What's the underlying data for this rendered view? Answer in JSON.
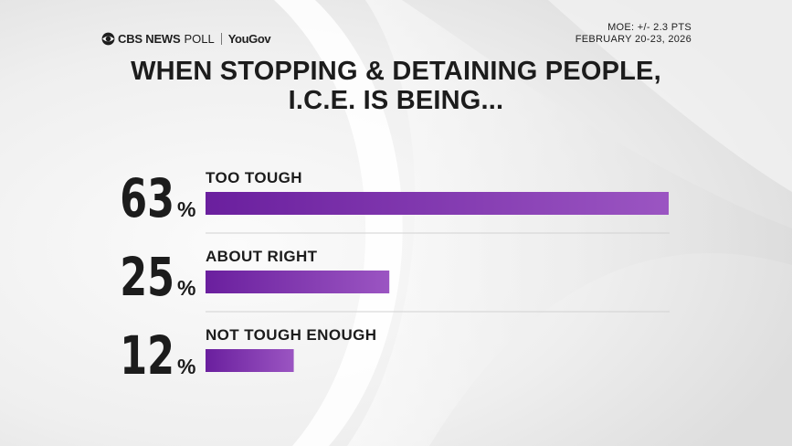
{
  "header": {
    "brand_cbs": "CBS NEWS",
    "brand_poll": "POLL",
    "brand_partner": "YouGov",
    "moe": "MOE: +/- 2.3 PTS",
    "dates": "FEBRUARY 20-23, 2026"
  },
  "colors": {
    "bar_start": "#6a1f9e",
    "bar_end": "#9b55c2",
    "text": "#1c1c1c",
    "divider": "#d2d2d2"
  },
  "chart_data": {
    "type": "bar",
    "orientation": "horizontal",
    "title_lines": [
      "WHEN STOPPING & DETAINING PEOPLE,",
      "I.C.E. IS BEING..."
    ],
    "categories": [
      "TOO TOUGH",
      "ABOUT RIGHT",
      "NOT TOUGH ENOUGH"
    ],
    "values": [
      63,
      25,
      12
    ],
    "value_suffix": "%",
    "xlim": [
      0,
      63
    ],
    "grid": false,
    "legend": "none"
  }
}
